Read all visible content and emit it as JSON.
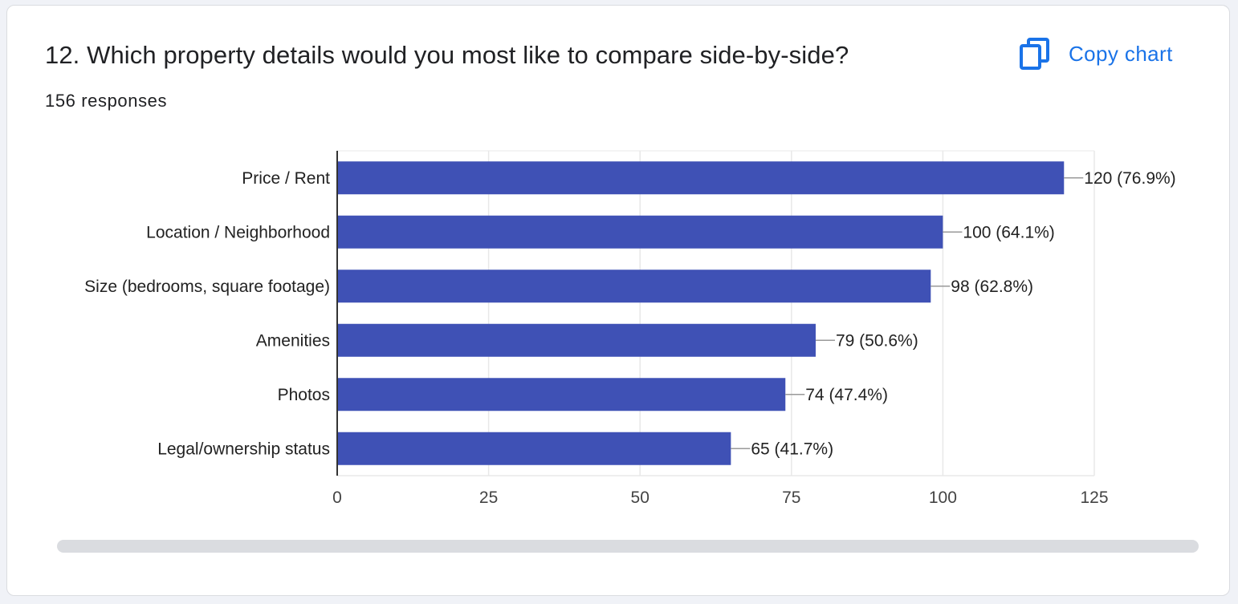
{
  "question": {
    "title": "12. Which property details would you most like to compare side-by-side?",
    "responses": "156 responses"
  },
  "copy_chart": {
    "label": "Copy chart",
    "icon": "copy-icon"
  },
  "colors": {
    "bar": "#3f51b5",
    "accent": "#1a73e8",
    "grid": "#e8e8e8",
    "axis": "#333333",
    "leader": "#999999"
  },
  "chart_data": {
    "type": "bar",
    "orientation": "horizontal",
    "categories": [
      "Price / Rent",
      "Location / Neighborhood",
      "Size (bedrooms, square footage)",
      "Amenities",
      "Photos",
      "Legal/ownership status"
    ],
    "values": [
      120,
      100,
      98,
      79,
      74,
      65
    ],
    "value_labels": [
      "120 (76.9%)",
      "100 (64.1%)",
      "98 (62.8%)",
      "79 (50.6%)",
      "74 (47.4%)",
      "65 (41.7%)"
    ],
    "xlim": [
      0,
      125
    ],
    "xticks": [
      0,
      25,
      50,
      75,
      100,
      125
    ],
    "xlabel": "",
    "ylabel": "",
    "grid": true
  }
}
